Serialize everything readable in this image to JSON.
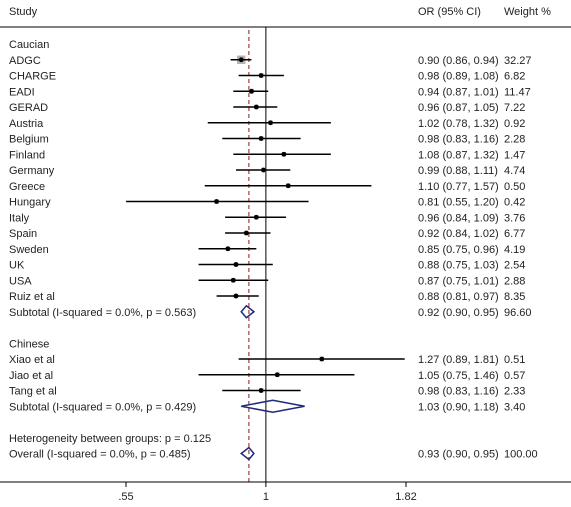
{
  "headers": {
    "study": "Study",
    "or": "OR (95% CI)",
    "weight": "Weight %"
  },
  "colors": {
    "ci_line": "#000000",
    "box": "#b3b3b3",
    "diamond": "#1f2a7a",
    "ref_line": "#8b1a1a",
    "axis": "#000000"
  },
  "chart_data": {
    "type": "forest",
    "x_axis": {
      "scale": "log",
      "ticks": [
        {
          "value": 0.55,
          "label": ".55"
        },
        {
          "value": 1,
          "label": "1"
        },
        {
          "value": 1.82,
          "label": "1.82"
        }
      ]
    },
    "null_line": 1,
    "overall_line": 0.93,
    "rows": [
      {
        "kind": "group",
        "label": "Caucian"
      },
      {
        "kind": "study",
        "label": "ADGC",
        "or": 0.9,
        "lo": 0.86,
        "hi": 0.94,
        "or_text": "0.90 (0.86, 0.94)",
        "weight": 32.27,
        "weight_text": "32.27"
      },
      {
        "kind": "study",
        "label": "CHARGE",
        "or": 0.98,
        "lo": 0.89,
        "hi": 1.08,
        "or_text": "0.98 (0.89, 1.08)",
        "weight": 6.82,
        "weight_text": "6.82"
      },
      {
        "kind": "study",
        "label": "EADI",
        "or": 0.94,
        "lo": 0.87,
        "hi": 1.01,
        "or_text": "0.94 (0.87, 1.01)",
        "weight": 11.47,
        "weight_text": "11.47"
      },
      {
        "kind": "study",
        "label": "GERAD",
        "or": 0.96,
        "lo": 0.87,
        "hi": 1.05,
        "or_text": "0.96 (0.87, 1.05)",
        "weight": 7.22,
        "weight_text": "7.22"
      },
      {
        "kind": "study",
        "label": "Austria",
        "or": 1.02,
        "lo": 0.78,
        "hi": 1.32,
        "or_text": "1.02 (0.78, 1.32)",
        "weight": 0.92,
        "weight_text": "0.92"
      },
      {
        "kind": "study",
        "label": "Belgium",
        "or": 0.98,
        "lo": 0.83,
        "hi": 1.16,
        "or_text": "0.98 (0.83, 1.16)",
        "weight": 2.28,
        "weight_text": "2.28"
      },
      {
        "kind": "study",
        "label": "Finland",
        "or": 1.08,
        "lo": 0.87,
        "hi": 1.32,
        "or_text": "1.08 (0.87, 1.32)",
        "weight": 1.47,
        "weight_text": "1.47"
      },
      {
        "kind": "study",
        "label": "Germany",
        "or": 0.99,
        "lo": 0.88,
        "hi": 1.11,
        "or_text": "0.99 (0.88, 1.11)",
        "weight": 4.74,
        "weight_text": "4.74"
      },
      {
        "kind": "study",
        "label": "Greece",
        "or": 1.1,
        "lo": 0.77,
        "hi": 1.57,
        "or_text": "1.10 (0.77, 1.57)",
        "weight": 0.5,
        "weight_text": "0.50"
      },
      {
        "kind": "study",
        "label": "Hungary",
        "or": 0.81,
        "lo": 0.55,
        "hi": 1.2,
        "or_text": "0.81 (0.55, 1.20)",
        "weight": 0.42,
        "weight_text": "0.42"
      },
      {
        "kind": "study",
        "label": "Italy",
        "or": 0.96,
        "lo": 0.84,
        "hi": 1.09,
        "or_text": "0.96 (0.84, 1.09)",
        "weight": 3.76,
        "weight_text": "3.76"
      },
      {
        "kind": "study",
        "label": "Spain",
        "or": 0.92,
        "lo": 0.84,
        "hi": 1.02,
        "or_text": "0.92 (0.84, 1.02)",
        "weight": 6.77,
        "weight_text": "6.77"
      },
      {
        "kind": "study",
        "label": "Sweden",
        "or": 0.85,
        "lo": 0.75,
        "hi": 0.96,
        "or_text": "0.85 (0.75, 0.96)",
        "weight": 4.19,
        "weight_text": "4.19"
      },
      {
        "kind": "study",
        "label": "UK",
        "or": 0.88,
        "lo": 0.75,
        "hi": 1.03,
        "or_text": "0.88 (0.75, 1.03)",
        "weight": 2.54,
        "weight_text": "2.54"
      },
      {
        "kind": "study",
        "label": "USA",
        "or": 0.87,
        "lo": 0.75,
        "hi": 1.01,
        "or_text": "0.87 (0.75, 1.01)",
        "weight": 2.88,
        "weight_text": "2.88"
      },
      {
        "kind": "study",
        "label": "Ruiz et al",
        "or": 0.88,
        "lo": 0.81,
        "hi": 0.97,
        "or_text": "0.88 (0.81, 0.97)",
        "weight": 8.35,
        "weight_text": "8.35"
      },
      {
        "kind": "subtotal",
        "label": "Subtotal  (I-squared = 0.0%, p = 0.563)",
        "or": 0.92,
        "lo": 0.9,
        "hi": 0.95,
        "or_text": "0.92 (0.90, 0.95)",
        "weight_text": "96.60"
      },
      {
        "kind": "blank"
      },
      {
        "kind": "group",
        "label": "Chinese"
      },
      {
        "kind": "study",
        "label": "Xiao et al",
        "or": 1.27,
        "lo": 0.89,
        "hi": 1.81,
        "or_text": "1.27 (0.89, 1.81)",
        "weight": 0.51,
        "weight_text": "0.51"
      },
      {
        "kind": "study",
        "label": "Jiao et al",
        "or": 1.05,
        "lo": 0.75,
        "hi": 1.46,
        "or_text": "1.05 (0.75, 1.46)",
        "weight": 0.57,
        "weight_text": "0.57"
      },
      {
        "kind": "study",
        "label": "Tang et al",
        "or": 0.98,
        "lo": 0.83,
        "hi": 1.16,
        "or_text": "0.98 (0.83, 1.16)",
        "weight": 2.33,
        "weight_text": "2.33"
      },
      {
        "kind": "subtotal",
        "label": "Subtotal  (I-squared = 0.0%, p = 0.429)",
        "or": 1.03,
        "lo": 0.9,
        "hi": 1.18,
        "or_text": "1.03 (0.90, 1.18)",
        "weight_text": "3.40"
      },
      {
        "kind": "blank"
      },
      {
        "kind": "note",
        "label": "Heterogeneity between groups: p = 0.125"
      },
      {
        "kind": "subtotal",
        "label": "Overall  (I-squared = 0.0%, p = 0.485)",
        "or": 0.93,
        "lo": 0.9,
        "hi": 0.95,
        "or_text": "0.93 (0.90, 0.95)",
        "weight_text": "100.00"
      }
    ]
  }
}
